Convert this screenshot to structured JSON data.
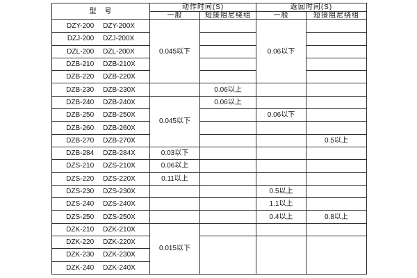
{
  "header": {
    "model_label": "型　号",
    "action_time_label": "动作时间(S)",
    "return_time_label": "返回时间(S)",
    "general_label": "一般",
    "damped_label": "短接阻尼绕组"
  },
  "columns": [
    "action-general",
    "action-damped-winding",
    "return-general",
    "return-damped-winding"
  ],
  "rows": [
    {
      "model": "DZY-200",
      "model_x": "DZY-200X",
      "cells": [
        {
          "col": 1,
          "text": "0.045以下",
          "rowspan": 5
        },
        {
          "col": 2,
          "text": ""
        },
        {
          "col": 3,
          "text": "0.06以下",
          "rowspan": 5
        },
        {
          "col": 4,
          "text": ""
        }
      ]
    },
    {
      "model": "DZJ-200",
      "model_x": "DZJ-200X",
      "cells": [
        {
          "col": 2,
          "text": ""
        },
        {
          "col": 4,
          "text": ""
        }
      ]
    },
    {
      "model": "DZL-200",
      "model_x": "DZL-200X",
      "cells": [
        {
          "col": 2,
          "text": ""
        },
        {
          "col": 4,
          "text": ""
        }
      ]
    },
    {
      "model": "DZB-210",
      "model_x": "DZB-210X",
      "cells": [
        {
          "col": 2,
          "text": ""
        },
        {
          "col": 4,
          "text": ""
        }
      ]
    },
    {
      "model": "DZB-220",
      "model_x": "DZB-220X",
      "cells": [
        {
          "col": 2,
          "text": ""
        },
        {
          "col": 4,
          "text": ""
        }
      ]
    },
    {
      "model": "DZB-230",
      "model_x": "DZB-230X",
      "cells": [
        {
          "col": 1,
          "text": ""
        },
        {
          "col": 2,
          "text": "0.06以上"
        },
        {
          "col": 3,
          "text": ""
        },
        {
          "col": 4,
          "text": ""
        }
      ]
    },
    {
      "model": "DZB-240",
      "model_x": "DZB-240X",
      "cells": [
        {
          "col": 1,
          "text": "0.045以下",
          "rowspan": 4
        },
        {
          "col": 2,
          "text": "0.06以上"
        },
        {
          "col": 3,
          "text": ""
        },
        {
          "col": 4,
          "text": ""
        }
      ]
    },
    {
      "model": "DZB-250",
      "model_x": "DZB-250X",
      "cells": [
        {
          "col": 2,
          "text": ""
        },
        {
          "col": 3,
          "text": "0.06以下"
        },
        {
          "col": 4,
          "text": ""
        }
      ]
    },
    {
      "model": "DZB-260",
      "model_x": "DZB-260X",
      "cells": [
        {
          "col": 2,
          "text": ""
        },
        {
          "col": 3,
          "text": ""
        },
        {
          "col": 4,
          "text": ""
        }
      ]
    },
    {
      "model": "DZB-270",
      "model_x": "DZB-270X",
      "cells": [
        {
          "col": 2,
          "text": ""
        },
        {
          "col": 3,
          "text": ""
        },
        {
          "col": 4,
          "text": "0.5以上"
        }
      ]
    },
    {
      "model": "DZB-284",
      "model_x": "DZB-284X",
      "cells": [
        {
          "col": 1,
          "text": "0.03以下"
        },
        {
          "col": 2,
          "text": ""
        },
        {
          "col": 3,
          "text": ""
        },
        {
          "col": 4,
          "text": ""
        }
      ]
    },
    {
      "model": "DZS-210",
      "model_x": "DZS-210X",
      "cells": [
        {
          "col": 1,
          "text": "0.06以上"
        },
        {
          "col": 2,
          "text": ""
        },
        {
          "col": 3,
          "text": ""
        },
        {
          "col": 4,
          "text": ""
        }
      ]
    },
    {
      "model": "DZS-220",
      "model_x": "DZS-220X",
      "cells": [
        {
          "col": 1,
          "text": "0.11以上"
        },
        {
          "col": 2,
          "text": ""
        },
        {
          "col": 3,
          "text": ""
        },
        {
          "col": 4,
          "text": ""
        }
      ]
    },
    {
      "model": "DZS-230",
      "model_x": "DZS-230X",
      "cells": [
        {
          "col": 1,
          "text": ""
        },
        {
          "col": 2,
          "text": ""
        },
        {
          "col": 3,
          "text": "0.5以上"
        },
        {
          "col": 4,
          "text": ""
        }
      ]
    },
    {
      "model": "DZS-240",
      "model_x": "DZS-240X",
      "cells": [
        {
          "col": 1,
          "text": ""
        },
        {
          "col": 2,
          "text": ""
        },
        {
          "col": 3,
          "text": "1.1以上"
        },
        {
          "col": 4,
          "text": ""
        }
      ]
    },
    {
      "model": "DZS-250",
      "model_x": "DZS-250X",
      "cells": [
        {
          "col": 1,
          "text": ""
        },
        {
          "col": 2,
          "text": ""
        },
        {
          "col": 3,
          "text": "0.4以上"
        },
        {
          "col": 4,
          "text": "0.8以上"
        }
      ]
    },
    {
      "model": "DZK-210",
      "model_x": "DZK-210X",
      "cells": [
        {
          "col": 1,
          "text": "0.015以下",
          "rowspan": 4
        },
        {
          "col": 2,
          "text": ""
        },
        {
          "col": 3,
          "text": ""
        },
        {
          "col": 4,
          "text": ""
        }
      ]
    },
    {
      "model": "DZK-220",
      "model_x": "DZK-220X",
      "cells": [
        {
          "col": 2,
          "text": "",
          "rowspan": 3
        },
        {
          "col": 3,
          "text": "",
          "rowspan": 3
        },
        {
          "col": 4,
          "text": "",
          "rowspan": 3
        }
      ]
    },
    {
      "model": "DZK-230",
      "model_x": "DZK-230X",
      "cells": []
    },
    {
      "model": "DZK-240",
      "model_x": "DZK-240X",
      "cells": []
    }
  ]
}
